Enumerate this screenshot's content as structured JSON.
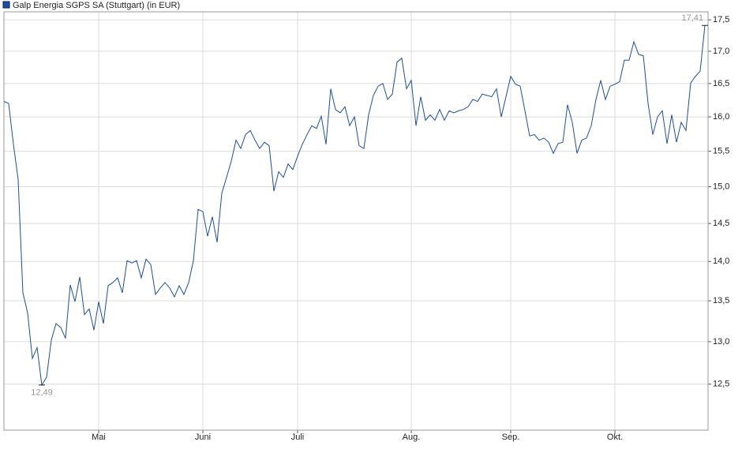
{
  "chart_data": {
    "type": "line",
    "series": [
      {
        "name": "Galp Energia SGPS SA (Stuttgart) (in EUR)",
        "color": "#1f4e9a",
        "values": [
          16.23,
          16.2,
          15.6,
          15.1,
          13.6,
          13.35,
          12.8,
          12.93,
          12.49,
          12.58,
          13.02,
          13.22,
          13.17,
          13.04,
          13.7,
          13.49,
          13.8,
          13.33,
          13.4,
          13.14,
          13.49,
          13.22,
          13.69,
          13.73,
          13.79,
          13.6,
          14.01,
          13.98,
          14.01,
          13.79,
          14.03,
          13.96,
          13.58,
          13.66,
          13.73,
          13.66,
          13.55,
          13.69,
          13.58,
          13.73,
          14.01,
          14.69,
          14.66,
          14.33,
          14.59,
          14.25,
          14.91,
          15.13,
          15.36,
          15.66,
          15.54,
          15.74,
          15.8,
          15.66,
          15.54,
          15.63,
          15.58,
          14.94,
          15.21,
          15.13,
          15.32,
          15.24,
          15.43,
          15.6,
          15.74,
          15.87,
          15.83,
          16.01,
          15.6,
          16.42,
          16.11,
          16.06,
          16.15,
          15.87,
          16.0,
          15.58,
          15.54,
          16.03,
          16.32,
          16.46,
          16.5,
          16.26,
          16.34,
          16.83,
          16.89,
          16.42,
          16.55,
          15.87,
          16.3,
          15.95,
          16.03,
          15.95,
          16.11,
          15.95,
          16.09,
          16.06,
          16.09,
          16.11,
          16.15,
          16.26,
          16.23,
          16.34,
          16.32,
          16.3,
          16.42,
          16.0,
          16.3,
          16.61,
          16.49,
          16.46,
          16.09,
          15.72,
          15.74,
          15.66,
          15.69,
          15.63,
          15.47,
          15.61,
          15.63,
          16.18,
          15.92,
          15.47,
          15.66,
          15.69,
          15.87,
          16.26,
          16.55,
          16.26,
          16.46,
          16.49,
          16.53,
          16.86,
          16.86,
          17.15,
          16.95,
          16.93,
          16.2,
          15.74,
          16.0,
          16.09,
          15.61,
          16.03,
          15.63,
          15.92,
          15.8,
          16.51,
          16.61,
          16.69,
          17.41
        ]
      }
    ],
    "categories": [
      null,
      null,
      null,
      null,
      null,
      null,
      null,
      null,
      null,
      null,
      null,
      null,
      null,
      null,
      null,
      null,
      null,
      null,
      null,
      null,
      "Mai",
      null,
      null,
      null,
      null,
      null,
      null,
      null,
      null,
      null,
      null,
      null,
      null,
      null,
      null,
      null,
      null,
      null,
      null,
      null,
      null,
      null,
      "Juni",
      null,
      null,
      null,
      null,
      null,
      null,
      null,
      null,
      null,
      null,
      null,
      null,
      null,
      null,
      null,
      null,
      null,
      null,
      null,
      "Juli",
      null,
      null,
      null,
      null,
      null,
      null,
      null,
      null,
      null,
      null,
      null,
      null,
      null,
      null,
      null,
      null,
      null,
      null,
      null,
      null,
      null,
      null,
      null,
      "Aug.",
      null,
      null,
      null,
      null,
      null,
      null,
      null,
      null,
      null,
      null,
      null,
      null,
      null,
      null,
      null,
      null,
      null,
      null,
      null,
      null,
      "Sep.",
      null,
      null,
      null,
      null,
      null,
      null,
      null,
      null,
      null,
      null,
      null,
      null,
      null,
      null,
      null,
      null,
      null,
      null,
      null,
      null,
      null,
      "Okt.",
      null,
      null,
      null,
      null,
      null,
      null,
      null,
      null,
      null,
      null,
      null,
      null,
      null,
      null,
      null,
      null,
      null,
      null,
      null
    ],
    "ylim": [
      11.98,
      17.63
    ],
    "log_scale": true,
    "grid": true,
    "yticks": [
      {
        "value": 12.5,
        "label": "12,5"
      },
      {
        "value": 13,
        "label": "13,0"
      },
      {
        "value": 13.5,
        "label": "13,5"
      },
      {
        "value": 14,
        "label": "14,0"
      },
      {
        "value": 14.5,
        "label": "14,5"
      },
      {
        "value": 15,
        "label": "15,0"
      },
      {
        "value": 15.5,
        "label": "15,5"
      },
      {
        "value": 16,
        "label": "16,0"
      },
      {
        "value": 16.5,
        "label": "16,5"
      },
      {
        "value": 17,
        "label": "17,0"
      },
      {
        "value": 17.5,
        "label": "17,5"
      }
    ],
    "annotations": [
      {
        "value": 12.49,
        "label": "12,49"
      },
      {
        "value": 17.41,
        "label": "17,41"
      }
    ]
  }
}
